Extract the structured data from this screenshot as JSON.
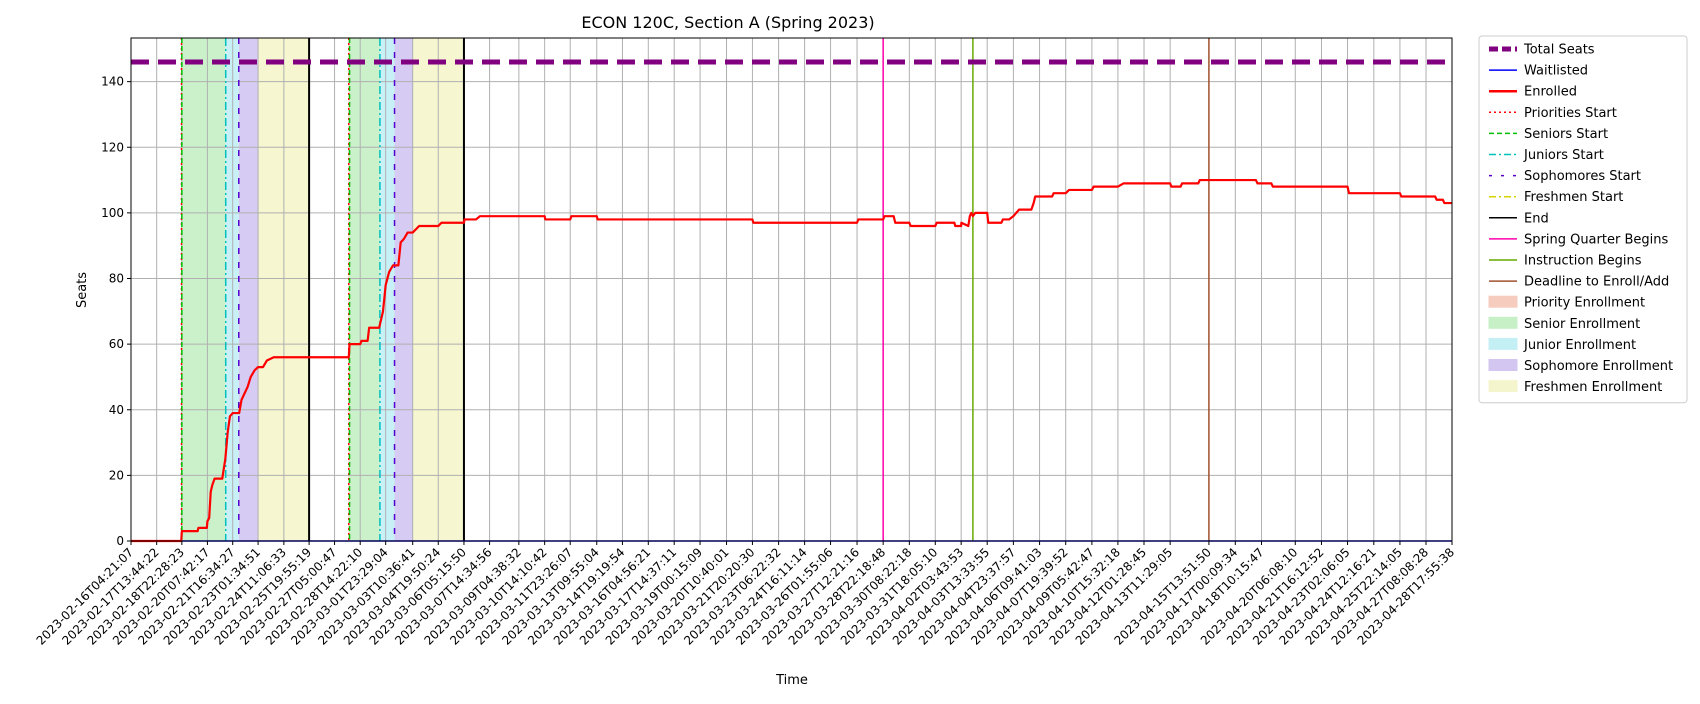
{
  "chart_data": {
    "type": "line",
    "title": "ECON 120C, Section A (Spring 2023)",
    "xlabel": "Time",
    "ylabel": "Seats",
    "ylim": [
      0,
      153.3
    ],
    "yticks": [
      0,
      20,
      40,
      60,
      80,
      100,
      120,
      140
    ],
    "xlim": [
      "2023-02-16T04:21:07",
      "2023-04-28T17:55:38"
    ],
    "xticks": [
      "2023-02-16T04:21:07",
      "2023-02-17T13:44:22",
      "2023-02-18T22:28:23",
      "2023-02-20T07:42:17",
      "2023-02-21T16:34:27",
      "2023-02-23T01:34:51",
      "2023-02-24T11:06:33",
      "2023-02-25T19:55:19",
      "2023-02-27T05:00:47",
      "2023-02-28T14:22:10",
      "2023-03-01T23:29:04",
      "2023-03-03T10:36:41",
      "2023-03-04T19:50:24",
      "2023-03-06T05:15:50",
      "2023-03-07T14:34:56",
      "2023-03-09T04:38:32",
      "2023-03-10T14:10:42",
      "2023-03-11T23:26:07",
      "2023-03-13T09:55:04",
      "2023-03-14T19:19:54",
      "2023-03-16T04:56:21",
      "2023-03-17T14:37:11",
      "2023-03-19T00:15:09",
      "2023-03-20T10:40:01",
      "2023-03-21T20:20:30",
      "2023-03-23T06:22:32",
      "2023-03-24T16:11:14",
      "2023-03-26T01:55:06",
      "2023-03-27T12:21:16",
      "2023-03-28T22:18:48",
      "2023-03-30T08:22:18",
      "2023-03-31T18:05:10",
      "2023-04-02T03:43:53",
      "2023-04-03T13:33:55",
      "2023-04-04T23:37:57",
      "2023-04-06T09:41:03",
      "2023-04-07T19:39:52",
      "2023-04-09T05:42:47",
      "2023-04-10T15:32:18",
      "2023-04-12T01:28:45",
      "2023-04-13T11:29:05",
      "2023-04-15T13:51:50",
      "2023-04-17T00:09:34",
      "2023-04-18T10:15:47",
      "2023-04-20T06:08:10",
      "2023-04-21T16:12:52",
      "2023-04-23T02:06:05",
      "2023-04-24T12:16:21",
      "2023-04-25T22:14:05",
      "2023-04-27T08:08:28",
      "2023-04-28T17:55:38"
    ],
    "grid": true,
    "legend_position": "outside-right",
    "total_seats": 146,
    "enrolled": [
      [
        "2023-02-16T04:21:07",
        0
      ],
      [
        "2023-02-18T21:40:00",
        0
      ],
      [
        "2023-02-18T22:28:23",
        3
      ],
      [
        "2023-02-19T06:00:00",
        3
      ],
      [
        "2023-02-19T19:00:00",
        3
      ],
      [
        "2023-02-19T20:00:00",
        4
      ],
      [
        "2023-02-20T07:00:00",
        4
      ],
      [
        "2023-02-20T07:42:17",
        6
      ],
      [
        "2023-02-20T10:00:00",
        7
      ],
      [
        "2023-02-20T12:00:00",
        15
      ],
      [
        "2023-02-20T14:00:00",
        17
      ],
      [
        "2023-02-20T17:00:00",
        19
      ],
      [
        "2023-02-21T03:00:00",
        19
      ],
      [
        "2023-02-21T07:00:00",
        25
      ],
      [
        "2023-02-21T10:00:00",
        33
      ],
      [
        "2023-02-21T13:00:00",
        38
      ],
      [
        "2023-02-21T16:34:27",
        39
      ],
      [
        "2023-02-22T01:00:00",
        39
      ],
      [
        "2023-02-22T04:00:00",
        43
      ],
      [
        "2023-02-22T08:00:00",
        45
      ],
      [
        "2023-02-22T12:00:00",
        47
      ],
      [
        "2023-02-22T16:00:00",
        50
      ],
      [
        "2023-02-22T21:00:00",
        52
      ],
      [
        "2023-02-23T01:34:51",
        53
      ],
      [
        "2023-02-23T08:00:00",
        53
      ],
      [
        "2023-02-23T13:00:00",
        55
      ],
      [
        "2023-02-23T22:00:00",
        56
      ],
      [
        "2023-02-27T23:30:00",
        56
      ],
      [
        "2023-02-28T00:30:00",
        60
      ],
      [
        "2023-02-28T14:22:10",
        60
      ],
      [
        "2023-02-28T16:00:00",
        61
      ],
      [
        "2023-03-01T00:00:00",
        61
      ],
      [
        "2023-03-01T02:00:00",
        65
      ],
      [
        "2023-03-01T15:00:00",
        65
      ],
      [
        "2023-03-01T20:00:00",
        70
      ],
      [
        "2023-03-01T23:29:04",
        78
      ],
      [
        "2023-03-02T04:00:00",
        82
      ],
      [
        "2023-03-02T09:00:00",
        84
      ],
      [
        "2023-03-02T16:00:00",
        84
      ],
      [
        "2023-03-02T19:00:00",
        91
      ],
      [
        "2023-03-02T23:00:00",
        92
      ],
      [
        "2023-03-03T04:00:00",
        94
      ],
      [
        "2023-03-03T10:36:41",
        94
      ],
      [
        "2023-03-03T19:00:00",
        96
      ],
      [
        "2023-03-04T19:50:24",
        96
      ],
      [
        "2023-03-05T00:00:00",
        97
      ],
      [
        "2023-03-06T05:15:50",
        97
      ],
      [
        "2023-03-06T06:00:00",
        98
      ],
      [
        "2023-03-06T21:00:00",
        98
      ],
      [
        "2023-03-07T02:00:00",
        99
      ],
      [
        "2023-03-10T14:10:42",
        99
      ],
      [
        "2023-03-10T15:00:00",
        98
      ],
      [
        "2023-03-11T23:26:07",
        98
      ],
      [
        "2023-03-12T01:00:00",
        99
      ],
      [
        "2023-03-13T09:55:04",
        99
      ],
      [
        "2023-03-13T11:00:00",
        98
      ],
      [
        "2023-03-21T20:20:30",
        98
      ],
      [
        "2023-03-21T21:30:00",
        97
      ],
      [
        "2023-03-27T12:21:16",
        97
      ],
      [
        "2023-03-27T14:00:00",
        98
      ],
      [
        "2023-03-28T22:18:48",
        98
      ],
      [
        "2023-03-29T00:00:00",
        99
      ],
      [
        "2023-03-29T12:00:00",
        99
      ],
      [
        "2023-03-29T14:00:00",
        97
      ],
      [
        "2023-03-30T08:22:18",
        97
      ],
      [
        "2023-03-30T10:00:00",
        96
      ],
      [
        "2023-03-31T18:05:10",
        96
      ],
      [
        "2023-03-31T20:00:00",
        97
      ],
      [
        "2023-04-01T19:00:00",
        97
      ],
      [
        "2023-04-01T20:00:00",
        96
      ],
      [
        "2023-04-02T03:43:53",
        96
      ],
      [
        "2023-04-02T04:00:00",
        97
      ],
      [
        "2023-04-02T13:00:00",
        96
      ],
      [
        "2023-04-02T15:00:00",
        99
      ],
      [
        "2023-04-02T17:00:00",
        100
      ],
      [
        "2023-04-02T19:00:00",
        99
      ],
      [
        "2023-04-02T22:00:00",
        100
      ],
      [
        "2023-04-03T13:33:55",
        100
      ],
      [
        "2023-04-03T15:00:00",
        97
      ],
      [
        "2023-04-04T08:00:00",
        97
      ],
      [
        "2023-04-04T10:00:00",
        98
      ],
      [
        "2023-04-04T18:00:00",
        98
      ],
      [
        "2023-04-04T23:37:57",
        99
      ],
      [
        "2023-04-05T07:00:00",
        101
      ],
      [
        "2023-04-05T23:00:00",
        101
      ],
      [
        "2023-04-06T02:00:00",
        103
      ],
      [
        "2023-04-06T04:00:00",
        105
      ],
      [
        "2023-04-07T02:00:00",
        105
      ],
      [
        "2023-04-07T04:00:00",
        106
      ],
      [
        "2023-04-07T19:39:52",
        106
      ],
      [
        "2023-04-08T00:00:00",
        107
      ],
      [
        "2023-04-09T05:42:47",
        107
      ],
      [
        "2023-04-09T08:00:00",
        108
      ],
      [
        "2023-04-10T15:32:18",
        108
      ],
      [
        "2023-04-10T23:00:00",
        109
      ],
      [
        "2023-04-13T11:29:05",
        109
      ],
      [
        "2023-04-13T13:00:00",
        108
      ],
      [
        "2023-04-14T01:00:00",
        108
      ],
      [
        "2023-04-14T03:00:00",
        109
      ],
      [
        "2023-04-15T00:00:00",
        109
      ],
      [
        "2023-04-15T02:00:00",
        110
      ],
      [
        "2023-04-18T03:00:00",
        110
      ],
      [
        "2023-04-18T05:00:00",
        109
      ],
      [
        "2023-04-18T23:00:00",
        109
      ],
      [
        "2023-04-19T01:00:00",
        108
      ],
      [
        "2023-04-23T02:06:05",
        108
      ],
      [
        "2023-04-23T04:00:00",
        106
      ],
      [
        "2023-04-24T12:16:21",
        106
      ],
      [
        "2023-04-25T22:14:05",
        106
      ],
      [
        "2023-04-26T00:00:00",
        105
      ],
      [
        "2023-04-27T20:00:00",
        105
      ],
      [
        "2023-04-27T22:00:00",
        104
      ],
      [
        "2023-04-28T06:00:00",
        104
      ],
      [
        "2023-04-28T08:00:00",
        103
      ],
      [
        "2023-04-28T17:55:38",
        103
      ]
    ],
    "waitlisted": [
      [
        "2023-02-16T04:21:07",
        0
      ],
      [
        "2023-04-28T17:55:38",
        0
      ]
    ],
    "vertical_events": [
      {
        "label": "Priorities Start",
        "time": "2023-02-18T22:00:00"
      },
      {
        "label": "Seniors Start",
        "time": "2023-02-18T22:28:23"
      },
      {
        "label": "Juniors Start",
        "time": "2023-02-21T07:30:00"
      },
      {
        "label": "Sophomores Start",
        "time": "2023-02-22T00:30:00"
      },
      {
        "label": "End",
        "time": "2023-02-25T19:55:19"
      },
      {
        "label": "Priorities Start",
        "time": "2023-02-27T23:30:00"
      },
      {
        "label": "Seniors Start",
        "time": "2023-02-28T00:30:00"
      },
      {
        "label": "Juniors Start",
        "time": "2023-03-01T16:00:00"
      },
      {
        "label": "Sophomores Start",
        "time": "2023-03-02T11:00:00"
      },
      {
        "label": "End",
        "time": "2023-03-06T05:15:50"
      },
      {
        "label": "Spring Quarter Begins",
        "time": "2023-03-28T22:18:48"
      },
      {
        "label": "Instruction Begins",
        "time": "2023-04-02T19:00:00"
      },
      {
        "label": "Deadline to Enroll/Add",
        "time": "2023-04-15T13:51:50"
      }
    ],
    "shaded_regions": [
      {
        "label": "Priority Enrollment",
        "start": "2023-02-18T21:30:00",
        "end": "2023-02-18T22:28:23"
      },
      {
        "label": "Senior Enrollment",
        "start": "2023-02-18T22:28:23",
        "end": "2023-02-21T07:30:00"
      },
      {
        "label": "Junior Enrollment",
        "start": "2023-02-21T07:30:00",
        "end": "2023-02-22T00:30:00"
      },
      {
        "label": "Sophomore Enrollment",
        "start": "2023-02-22T00:30:00",
        "end": "2023-02-23T01:34:51"
      },
      {
        "label": "Freshmen Enrollment",
        "start": "2023-02-23T01:34:51",
        "end": "2023-02-25T19:55:19"
      },
      {
        "label": "Priority Enrollment",
        "start": "2023-02-27T23:00:00",
        "end": "2023-02-28T00:30:00"
      },
      {
        "label": "Senior Enrollment",
        "start": "2023-02-28T00:30:00",
        "end": "2023-03-01T16:00:00"
      },
      {
        "label": "Junior Enrollment",
        "start": "2023-03-01T16:00:00",
        "end": "2023-03-02T11:00:00"
      },
      {
        "label": "Sophomore Enrollment",
        "start": "2023-03-02T11:00:00",
        "end": "2023-03-03T10:36:41"
      },
      {
        "label": "Freshmen Enrollment",
        "start": "2023-03-03T10:36:41",
        "end": "2023-03-06T05:15:50"
      }
    ],
    "colors": {
      "total_seats": "#800080",
      "waitlisted": "#0000ff",
      "enrolled": "#ff0000",
      "priorities_start": "#ff0000",
      "seniors_start": "#00c000",
      "juniors_start": "#00bfbf",
      "sophomores_start": "#5500cc",
      "freshmen_start": "#d4d400",
      "end": "#000000",
      "spring_quarter_begins": "#ff00aa",
      "instruction_begins": "#66aa00",
      "deadline": "#a0522d",
      "priority_enrollment": "#f4c7b8",
      "senior_enrollment": "#c2efc2",
      "junior_enrollment": "#bdeef4",
      "sophomore_enrollment": "#cfc2f0",
      "freshmen_enrollment": "#f4f4c8"
    },
    "legend": [
      {
        "label": "Total Seats",
        "kind": "line",
        "color": "#800080",
        "style": "thick-dashed"
      },
      {
        "label": "Waitlisted",
        "kind": "line",
        "color": "#0000ff",
        "style": "solid"
      },
      {
        "label": "Enrolled",
        "kind": "line",
        "color": "#ff0000",
        "style": "solid-bold"
      },
      {
        "label": "Priorities Start",
        "kind": "line",
        "color": "#ff0000",
        "style": "dotted"
      },
      {
        "label": "Seniors Start",
        "kind": "line",
        "color": "#00c000",
        "style": "dashed"
      },
      {
        "label": "Juniors Start",
        "kind": "line",
        "color": "#00bfbf",
        "style": "dashdot"
      },
      {
        "label": "Sophomores Start",
        "kind": "line",
        "color": "#5500cc",
        "style": "loosedash"
      },
      {
        "label": "Freshmen Start",
        "kind": "line",
        "color": "#d4d400",
        "style": "dashdot"
      },
      {
        "label": "End",
        "kind": "line",
        "color": "#000000",
        "style": "solid"
      },
      {
        "label": "Spring Quarter Begins",
        "kind": "line",
        "color": "#ff00aa",
        "style": "solid"
      },
      {
        "label": "Instruction Begins",
        "kind": "line",
        "color": "#66aa00",
        "style": "solid"
      },
      {
        "label": "Deadline to Enroll/Add",
        "kind": "line",
        "color": "#a0522d",
        "style": "solid"
      },
      {
        "label": "Priority Enrollment",
        "kind": "patch",
        "color": "#f4c7b8"
      },
      {
        "label": "Senior Enrollment",
        "kind": "patch",
        "color": "#c2efc2"
      },
      {
        "label": "Junior Enrollment",
        "kind": "patch",
        "color": "#bdeef4"
      },
      {
        "label": "Sophomore Enrollment",
        "kind": "patch",
        "color": "#cfc2f0"
      },
      {
        "label": "Freshmen Enrollment",
        "kind": "patch",
        "color": "#f4f4c8"
      }
    ]
  }
}
